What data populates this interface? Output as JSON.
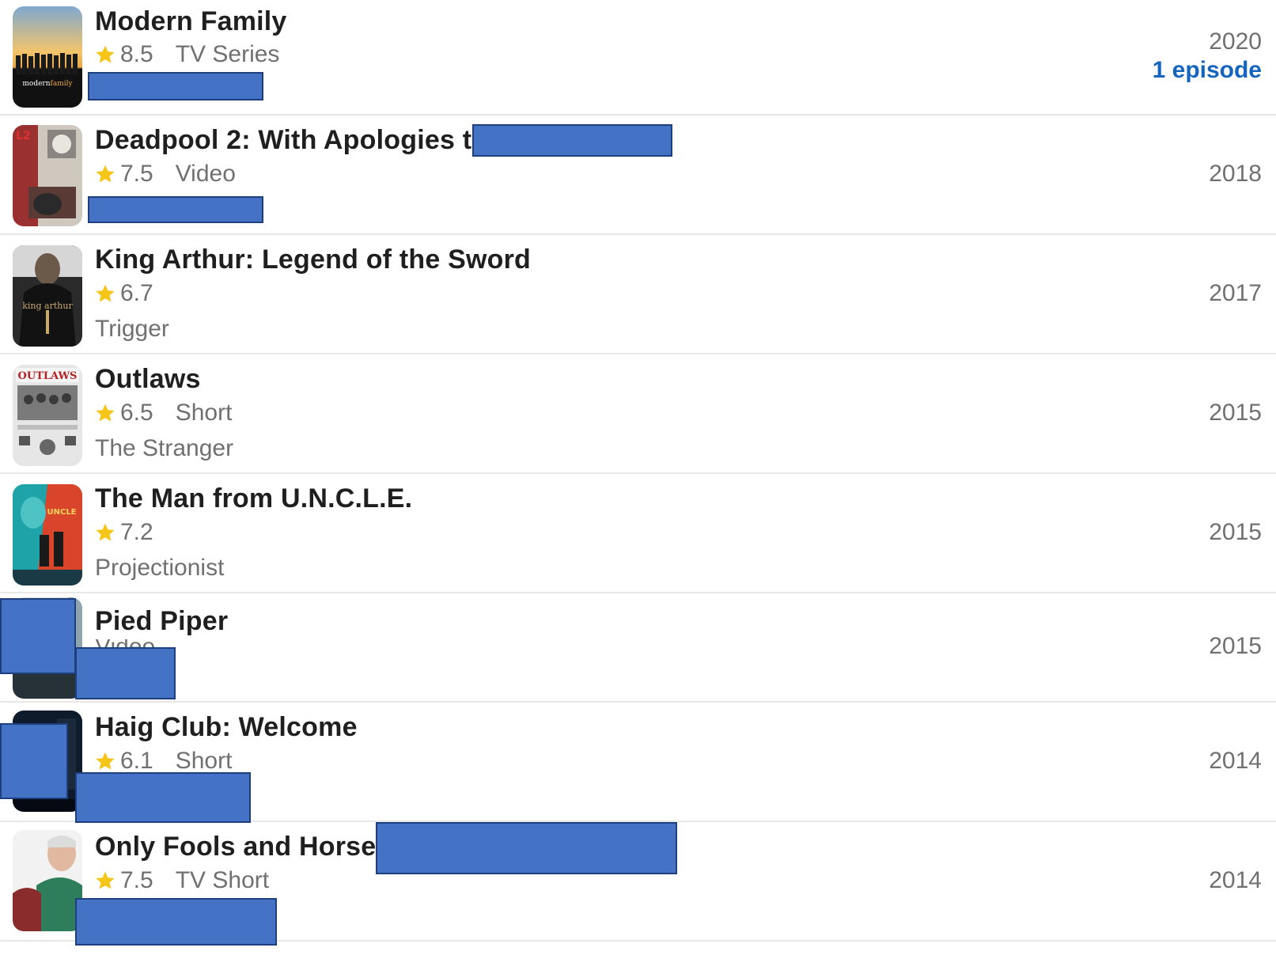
{
  "credits": [
    {
      "title": "Modern Family",
      "rating": "8.5",
      "kind": "TV Series",
      "role": "",
      "year": "2020",
      "episodes": "1 episode",
      "poster": {
        "top": "#e8a84a",
        "mid": "#f2c46b",
        "bottom": "#111111",
        "icon": "poster-family-cast-icon"
      }
    },
    {
      "title": "Deadpool 2: With Apologies to",
      "rating": "7.5",
      "kind": "Video",
      "role": "",
      "year": "2018",
      "poster": {
        "top": "#c9c4bc",
        "mid": "#9b3030",
        "bottom": "#5a3a35",
        "icon": "poster-deadpool-icon"
      }
    },
    {
      "title": "King Arthur: Legend of the Sword",
      "rating": "6.7",
      "kind": "",
      "role": "Trigger",
      "year": "2017",
      "poster": {
        "top": "#3a3a3a",
        "mid": "#1c1c1c",
        "bottom": "#0a0a0a",
        "icon": "poster-king-arthur-icon"
      }
    },
    {
      "title": "Outlaws",
      "rating": "6.5",
      "kind": "Short",
      "role": "The Stranger",
      "year": "2015",
      "poster": {
        "top": "#6a6a6a",
        "mid": "#b5b5b5",
        "bottom": "#e2e2e2",
        "icon": "poster-outlaws-icon"
      }
    },
    {
      "title": "The Man from U.N.C.L.E.",
      "rating": "7.2",
      "kind": "",
      "role": "Projectionist",
      "year": "2015",
      "poster": {
        "top": "#1ea3a8",
        "mid": "#d9452b",
        "bottom": "#1a3b45",
        "icon": "poster-uncle-icon"
      }
    },
    {
      "title": "Pied Piper",
      "rating": "",
      "kind": "Video",
      "role": "",
      "year": "2015",
      "poster": {
        "top": "#cfd8dc",
        "mid": "#90a4ae",
        "bottom": "#263238",
        "icon": "poster-pied-piper-icon"
      }
    },
    {
      "title": "Haig Club: Welcome",
      "rating": "6.1",
      "kind": "Short",
      "role": "",
      "year": "2014",
      "poster": {
        "top": "#0d1b2a",
        "mid": "#1b2a3a",
        "bottom": "#050a12",
        "icon": "poster-haig-club-icon"
      }
    },
    {
      "title": "Only Fools and Horses:",
      "rating": "7.5",
      "kind": "TV Short",
      "role": "",
      "year": "2014",
      "poster": {
        "top": "#f2f2f2",
        "mid": "#2e7d5b",
        "bottom": "#8b2c2c",
        "icon": "poster-only-fools-icon"
      }
    }
  ],
  "colors": {
    "star": "#f5c518",
    "redaction": "#4472c4",
    "link": "#1565c0"
  }
}
